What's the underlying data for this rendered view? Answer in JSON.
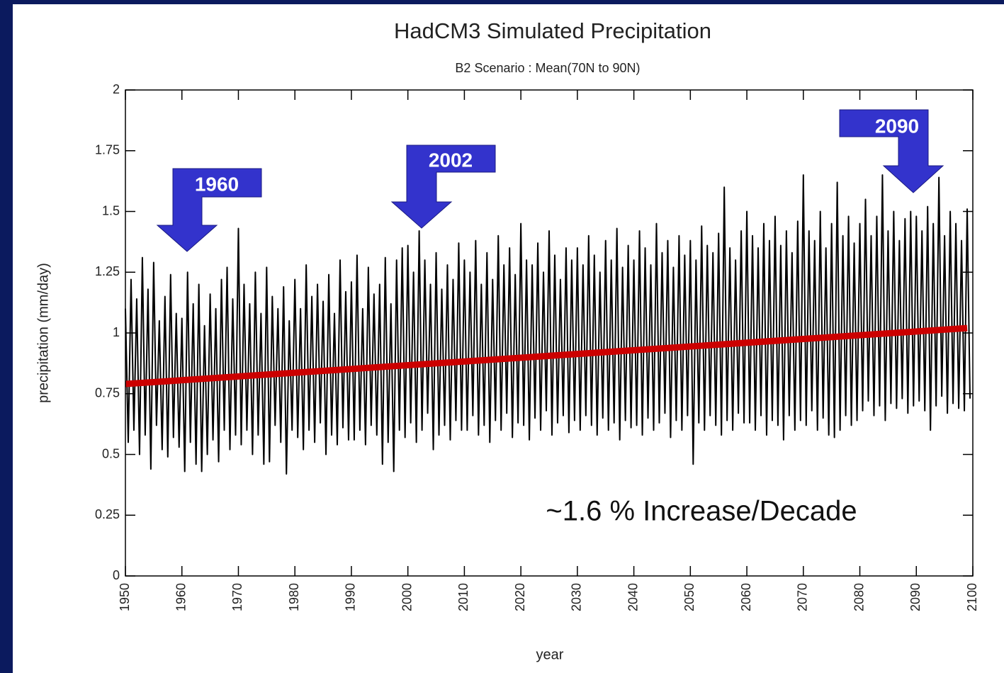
{
  "chart_data": {
    "type": "line",
    "title": "HadCM3 Simulated Precipitation",
    "subtitle": "B2 Scenario : Mean(70N to 90N)",
    "x_label": "year",
    "y_label": "precipitation (mm/day)",
    "annotations": [
      "1960",
      "2002",
      "2090",
      "~1.6 % Increase/Decade"
    ],
    "xlim": [
      1950,
      2100
    ],
    "xticks": [
      1950,
      1960,
      1970,
      1980,
      1990,
      2000,
      2010,
      2020,
      2030,
      2040,
      2050,
      2060,
      2070,
      2080,
      2090,
      2100
    ],
    "ylim": [
      0,
      2
    ],
    "yticks": [
      0,
      0.25,
      0.5,
      0.75,
      1,
      1.25,
      1.5,
      1.75,
      2
    ],
    "series": [
      {
        "color": "#000000",
        "x": [
          1950,
          1950.5,
          1951,
          1951.5,
          1952,
          1952.5,
          1953,
          1953.5,
          1954,
          1954.5,
          1955,
          1955.5,
          1956,
          1956.5,
          1957,
          1957.5,
          1958,
          1958.5,
          1959,
          1959.5,
          1960,
          1960.5,
          1961,
          1961.5,
          1962,
          1962.5,
          1963,
          1963.5,
          1964,
          1964.5,
          1965,
          1965.5,
          1966,
          1966.5,
          1967,
          1967.5,
          1968,
          1968.5,
          1969,
          1969.5,
          1970,
          1970.5,
          1971,
          1971.5,
          1972,
          1972.5,
          1973,
          1973.5,
          1974,
          1974.5,
          1975,
          1975.5,
          1976,
          1976.5,
          1977,
          1977.5,
          1978,
          1978.5,
          1979,
          1979.5,
          1980,
          1980.5,
          1981,
          1981.5,
          1982,
          1982.5,
          1983,
          1983.5,
          1984,
          1984.5,
          1985,
          1985.5,
          1986,
          1986.5,
          1987,
          1987.5,
          1988,
          1988.5,
          1989,
          1989.5,
          1990,
          1990.5,
          1991,
          1991.5,
          1992,
          1992.5,
          1993,
          1993.5,
          1994,
          1994.5,
          1995,
          1995.5,
          1996,
          1996.5,
          1997,
          1997.5,
          1998,
          1998.5,
          1999,
          1999.5,
          2000,
          2000.5,
          2001,
          2001.5,
          2002,
          2002.5,
          2003,
          2003.5,
          2004,
          2004.5,
          2005,
          2005.5,
          2006,
          2006.5,
          2007,
          2007.5,
          2008,
          2008.5,
          2009,
          2009.5,
          2010,
          2010.5,
          2011,
          2011.5,
          2012,
          2012.5,
          2013,
          2013.5,
          2014,
          2014.5,
          2015,
          2015.5,
          2016,
          2016.5,
          2017,
          2017.5,
          2018,
          2018.5,
          2019,
          2019.5,
          2020,
          2020.5,
          2021,
          2021.5,
          2022,
          2022.5,
          2023,
          2023.5,
          2024,
          2024.5,
          2025,
          2025.5,
          2026,
          2026.5,
          2027,
          2027.5,
          2028,
          2028.5,
          2029,
          2029.5,
          2030,
          2030.5,
          2031,
          2031.5,
          2032,
          2032.5,
          2033,
          2033.5,
          2034,
          2034.5,
          2035,
          2035.5,
          2036,
          2036.5,
          2037,
          2037.5,
          2038,
          2038.5,
          2039,
          2039.5,
          2040,
          2040.5,
          2041,
          2041.5,
          2042,
          2042.5,
          2043,
          2043.5,
          2044,
          2044.5,
          2045,
          2045.5,
          2046,
          2046.5,
          2047,
          2047.5,
          2048,
          2048.5,
          2049,
          2049.5,
          2050,
          2050.5,
          2051,
          2051.5,
          2052,
          2052.5,
          2053,
          2053.5,
          2054,
          2054.5,
          2055,
          2055.5,
          2056,
          2056.5,
          2057,
          2057.5,
          2058,
          2058.5,
          2059,
          2059.5,
          2060,
          2060.5,
          2061,
          2061.5,
          2062,
          2062.5,
          2063,
          2063.5,
          2064,
          2064.5,
          2065,
          2065.5,
          2066,
          2066.5,
          2067,
          2067.5,
          2068,
          2068.5,
          2069,
          2069.5,
          2070,
          2070.5,
          2071,
          2071.5,
          2072,
          2072.5,
          2073,
          2073.5,
          2074,
          2074.5,
          2075,
          2075.5,
          2076,
          2076.5,
          2077,
          2077.5,
          2078,
          2078.5,
          2079,
          2079.5,
          2080,
          2080.5,
          2081,
          2081.5,
          2082,
          2082.5,
          2083,
          2083.5,
          2084,
          2084.5,
          2085,
          2085.5,
          2086,
          2086.5,
          2087,
          2087.5,
          2088,
          2088.5,
          2089,
          2089.5,
          2090,
          2090.5,
          2091,
          2091.5,
          2092,
          2092.5,
          2093,
          2093.5,
          2094,
          2094.5,
          2095,
          2095.5,
          2096,
          2096.5,
          2097,
          2097.5,
          2098,
          2098.5,
          2099,
          2099.5
        ],
        "values": [
          1.1,
          0.55,
          1.22,
          0.6,
          1.14,
          0.5,
          1.31,
          0.58,
          1.18,
          0.44,
          1.29,
          0.62,
          1.05,
          0.52,
          1.15,
          0.49,
          1.24,
          0.57,
          1.08,
          0.53,
          1.06,
          0.43,
          1.25,
          0.55,
          1.12,
          0.46,
          1.2,
          0.43,
          1.03,
          0.5,
          1.16,
          0.56,
          1.1,
          0.47,
          1.22,
          0.6,
          1.27,
          0.52,
          1.14,
          0.58,
          1.43,
          0.54,
          1.2,
          0.6,
          1.12,
          0.5,
          1.25,
          0.58,
          1.08,
          0.46,
          1.27,
          0.47,
          1.15,
          0.62,
          1.1,
          0.55,
          1.19,
          0.42,
          1.05,
          0.6,
          1.22,
          0.57,
          1.1,
          0.52,
          1.28,
          0.6,
          1.15,
          0.55,
          1.2,
          0.63,
          1.13,
          0.5,
          1.24,
          0.58,
          1.08,
          0.54,
          1.3,
          0.61,
          1.17,
          0.56,
          1.21,
          0.56,
          1.32,
          0.6,
          1.1,
          0.54,
          1.27,
          0.62,
          1.16,
          0.58,
          1.2,
          0.46,
          1.31,
          0.55,
          1.12,
          0.43,
          1.3,
          0.6,
          1.35,
          0.57,
          1.36,
          0.63,
          1.25,
          0.55,
          1.42,
          0.6,
          1.3,
          0.67,
          1.2,
          0.52,
          1.33,
          0.58,
          1.18,
          0.62,
          1.28,
          0.56,
          1.22,
          0.64,
          1.37,
          0.6,
          1.3,
          0.6,
          1.25,
          0.66,
          1.38,
          0.58,
          1.2,
          0.62,
          1.33,
          0.55,
          1.22,
          0.64,
          1.4,
          0.6,
          1.28,
          0.67,
          1.35,
          0.57,
          1.24,
          0.63,
          1.45,
          0.62,
          1.3,
          0.56,
          1.28,
          0.65,
          1.37,
          0.6,
          1.25,
          0.68,
          1.42,
          0.58,
          1.32,
          0.63,
          1.22,
          0.66,
          1.35,
          0.59,
          1.3,
          0.64,
          1.35,
          0.6,
          1.28,
          0.66,
          1.4,
          0.62,
          1.32,
          0.58,
          1.25,
          0.65,
          1.38,
          0.6,
          1.3,
          0.63,
          1.43,
          0.56,
          1.27,
          0.64,
          1.36,
          0.61,
          1.3,
          0.62,
          1.42,
          0.58,
          1.35,
          0.65,
          1.28,
          0.6,
          1.45,
          0.63,
          1.33,
          0.67,
          1.38,
          0.57,
          1.27,
          0.64,
          1.4,
          0.6,
          1.32,
          0.66,
          1.38,
          0.46,
          1.3,
          0.63,
          1.44,
          0.6,
          1.36,
          0.66,
          1.33,
          0.62,
          1.41,
          0.58,
          1.6,
          0.64,
          1.35,
          0.6,
          1.3,
          0.67,
          1.42,
          0.63,
          1.5,
          0.63,
          1.4,
          0.6,
          1.35,
          0.66,
          1.45,
          0.58,
          1.38,
          0.64,
          1.48,
          0.62,
          1.36,
          0.56,
          1.42,
          0.66,
          1.33,
          0.6,
          1.46,
          0.64,
          1.65,
          0.62,
          1.42,
          0.68,
          1.38,
          0.6,
          1.5,
          0.65,
          1.35,
          0.58,
          1.45,
          0.57,
          1.62,
          0.6,
          1.4,
          0.66,
          1.48,
          0.62,
          1.37,
          0.64,
          1.45,
          0.68,
          1.55,
          0.72,
          1.4,
          0.66,
          1.48,
          0.7,
          1.65,
          0.64,
          1.42,
          0.71,
          1.5,
          0.69,
          1.38,
          0.73,
          1.47,
          0.67,
          1.5,
          0.7,
          1.48,
          0.72,
          1.42,
          0.68,
          1.52,
          0.6,
          1.45,
          0.7,
          1.64,
          0.74,
          1.4,
          0.67,
          1.5,
          0.71,
          1.45,
          0.69,
          1.38,
          0.68,
          1.51,
          0.73
        ]
      },
      {
        "color": "#cc0000",
        "x": [
          1950,
          2099
        ],
        "values": [
          0.79,
          1.02
        ]
      }
    ]
  }
}
